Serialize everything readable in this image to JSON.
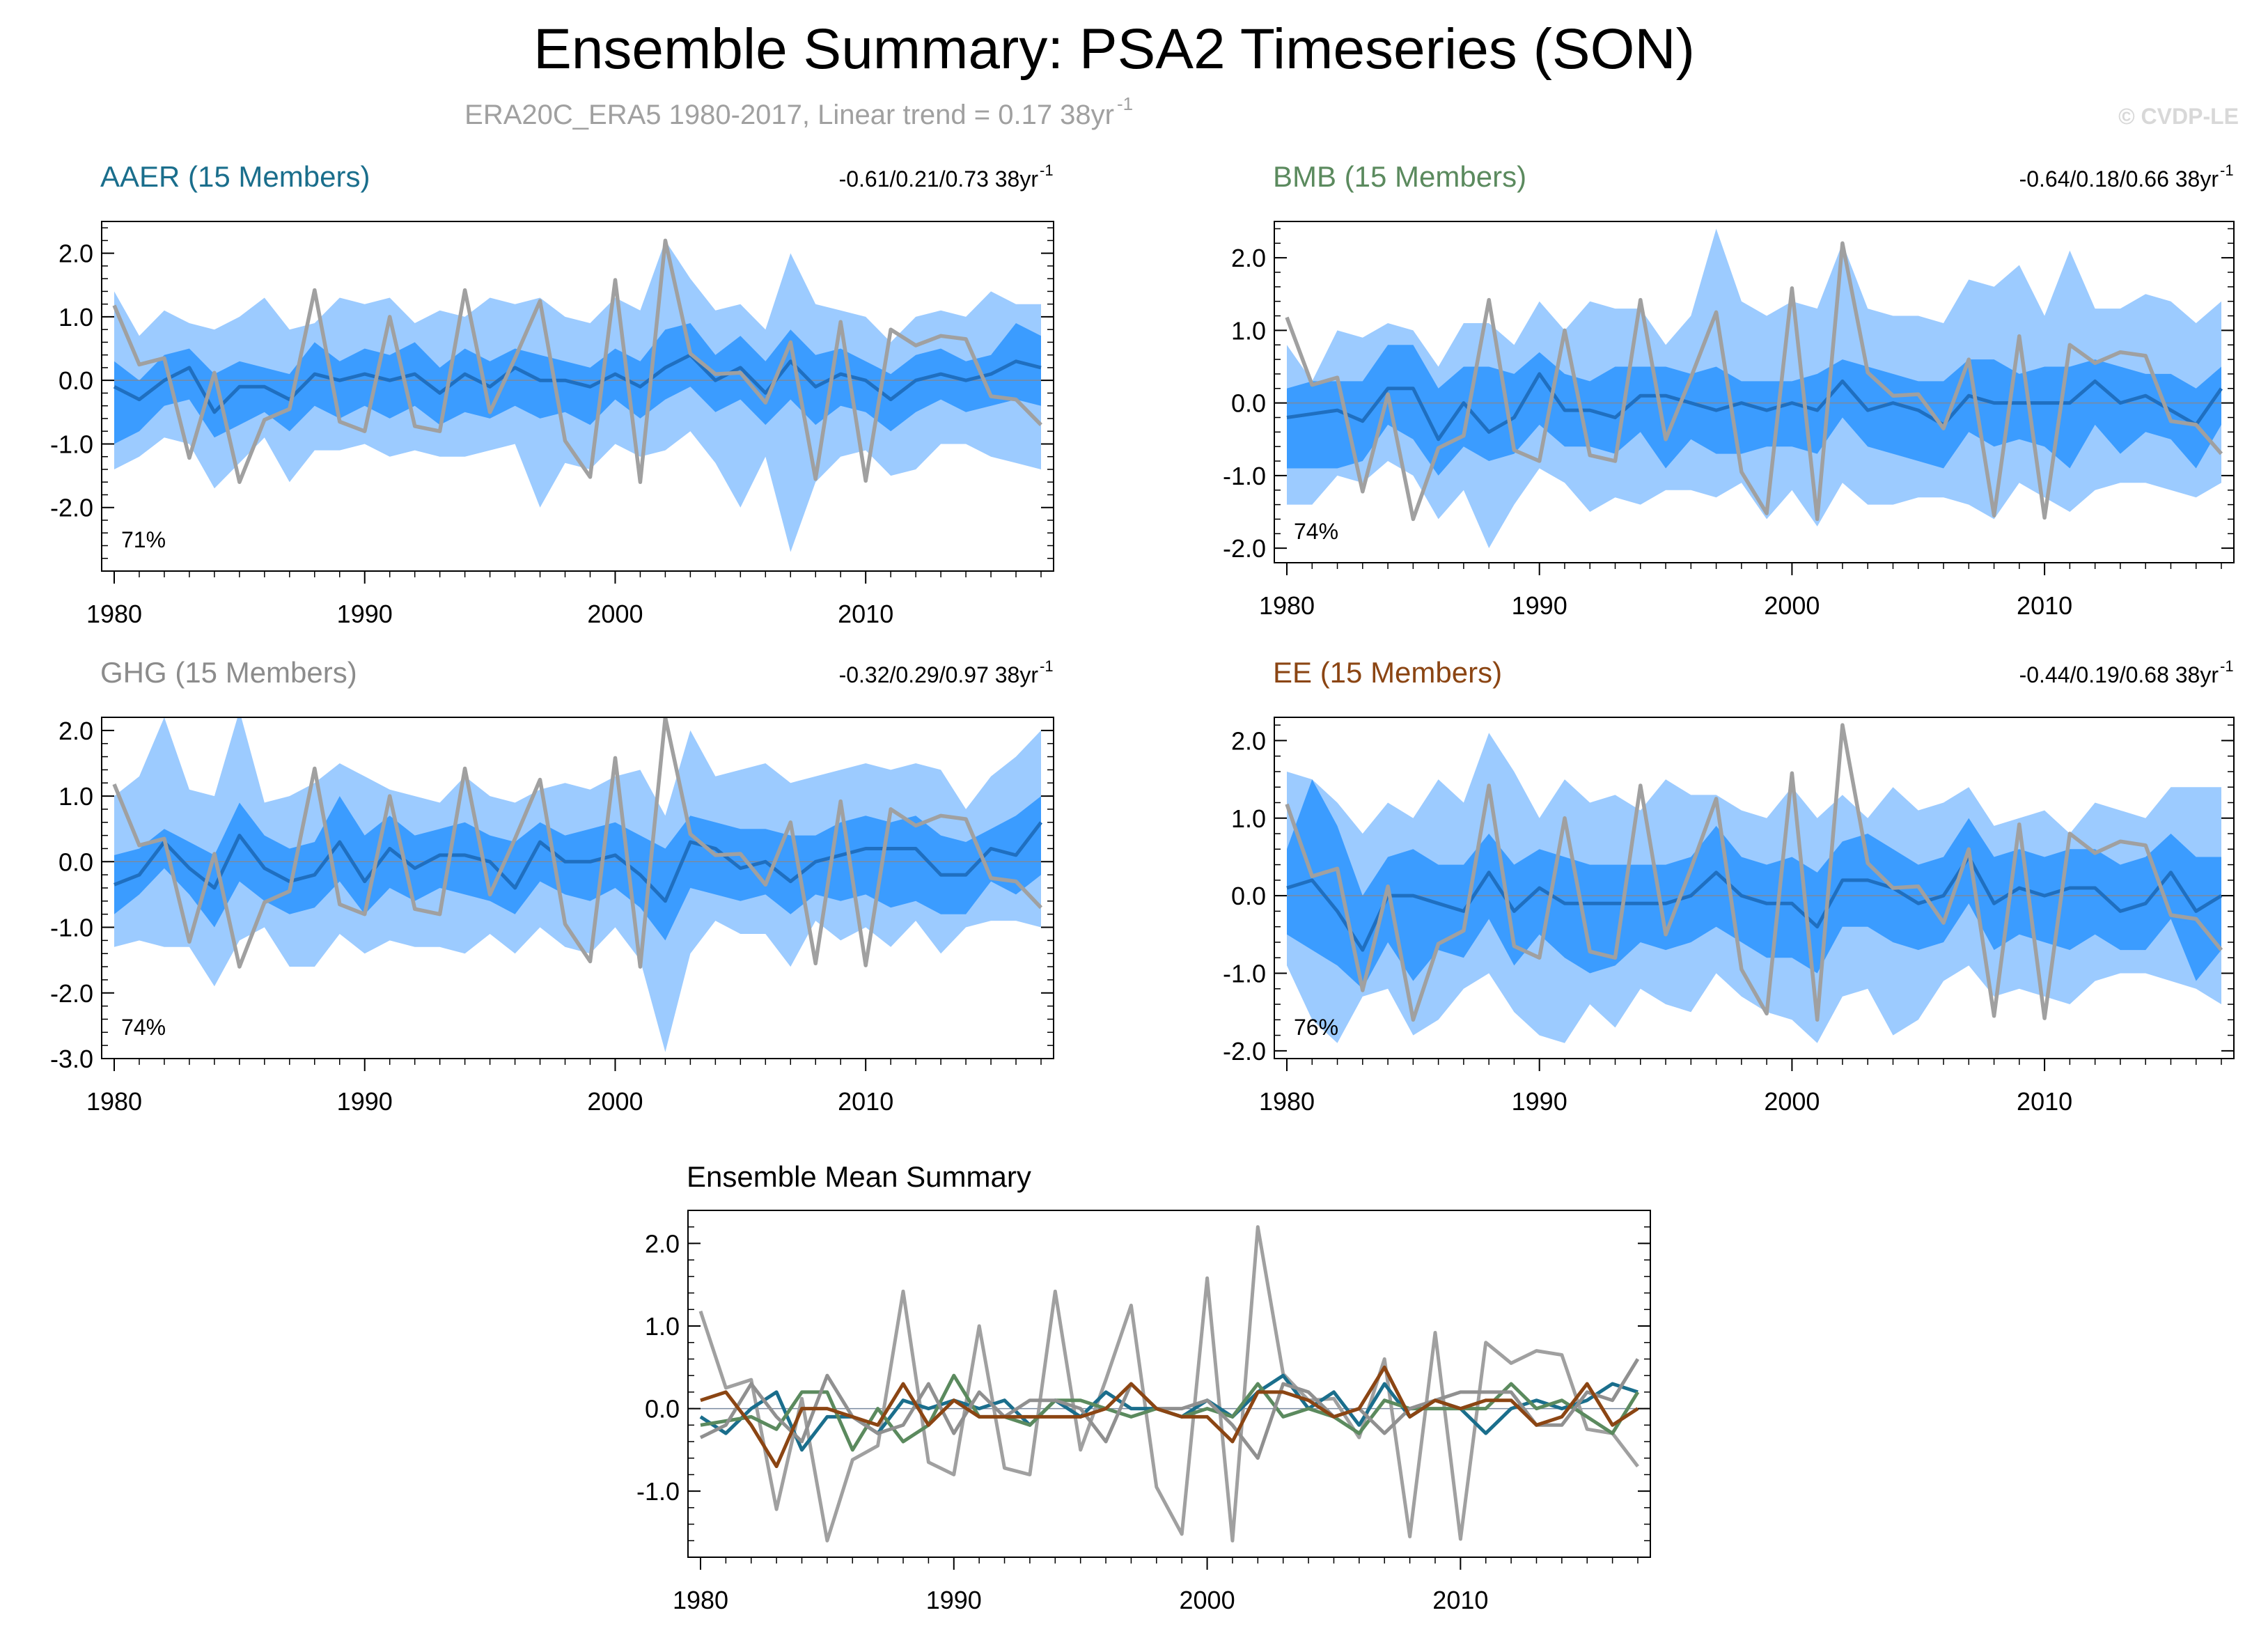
{
  "title": "Ensemble Summary: PSA2 Timeseries (SON)",
  "subtitle_main": "ERA20C_ERA5 1980-2017, Linear trend = 0.17 38yr",
  "subtitle_sup": "-1",
  "credit": "© CVDP-LE",
  "chart_data": [
    {
      "type": "line",
      "title": "AAER (15 Members)",
      "title_color": "#1a6e8c",
      "trend_text": "-0.61/0.21/0.73 38yr",
      "trend_sup": "-1",
      "pct_label": "71%",
      "ylim": [
        -3.0,
        2.5
      ],
      "yticks": [
        2.0,
        1.0,
        0.0,
        -1.0,
        -2.0
      ],
      "ytick_labels": [
        "2.0",
        "1.0",
        "0.0",
        "-1.0",
        "-2.0"
      ],
      "xticks": [
        1980,
        1990,
        2000,
        2010
      ],
      "xtick_labels": [
        "1980",
        "1990",
        "2000",
        "2010"
      ],
      "obs": [
        1.18,
        0.25,
        0.35,
        -1.22,
        0.12,
        -1.6,
        -0.62,
        -0.45,
        1.42,
        -0.65,
        -0.8,
        1.0,
        -0.72,
        -0.8,
        1.42,
        -0.5,
        0.35,
        1.25,
        -0.95,
        -1.52,
        1.58,
        -1.6,
        2.2,
        0.42,
        0.1,
        0.12,
        -0.35,
        0.6,
        -1.55,
        0.92,
        -1.58,
        0.8,
        0.55,
        0.7,
        0.65,
        -0.25,
        -0.3,
        -0.7
      ],
      "mean": [
        -0.1,
        -0.3,
        0.0,
        0.2,
        -0.5,
        -0.1,
        -0.1,
        -0.3,
        0.1,
        0.0,
        0.1,
        0.0,
        0.1,
        -0.2,
        0.1,
        -0.1,
        0.2,
        0.0,
        0.0,
        -0.1,
        0.1,
        -0.1,
        0.2,
        0.4,
        0.0,
        0.2,
        -0.2,
        0.3,
        -0.1,
        0.1,
        0.0,
        -0.3,
        0.0,
        0.1,
        0.0,
        0.1,
        0.3,
        0.2
      ],
      "inner_hi": [
        0.3,
        0.0,
        0.4,
        0.5,
        0.1,
        0.3,
        0.2,
        0.1,
        0.6,
        0.3,
        0.5,
        0.4,
        0.6,
        0.2,
        0.5,
        0.3,
        0.5,
        0.4,
        0.3,
        0.2,
        0.5,
        0.3,
        0.8,
        0.9,
        0.4,
        0.7,
        0.3,
        0.8,
        0.4,
        0.5,
        0.3,
        0.1,
        0.4,
        0.5,
        0.3,
        0.4,
        0.9,
        0.7
      ],
      "inner_lo": [
        -1.0,
        -0.8,
        -0.4,
        -0.3,
        -0.9,
        -0.7,
        -0.5,
        -0.8,
        -0.4,
        -0.6,
        -0.4,
        -0.6,
        -0.4,
        -0.7,
        -0.5,
        -0.6,
        -0.4,
        -0.6,
        -0.5,
        -0.7,
        -0.3,
        -0.6,
        -0.3,
        -0.1,
        -0.5,
        -0.3,
        -0.7,
        -0.3,
        -0.7,
        -0.4,
        -0.5,
        -0.8,
        -0.5,
        -0.3,
        -0.5,
        -0.4,
        -0.3,
        -0.4
      ],
      "outer_hi": [
        1.4,
        0.7,
        1.1,
        0.9,
        0.8,
        1.0,
        1.3,
        0.8,
        0.9,
        1.3,
        1.2,
        1.3,
        0.9,
        1.1,
        1.0,
        1.3,
        1.2,
        1.3,
        1.0,
        0.9,
        1.3,
        1.1,
        2.2,
        1.6,
        1.1,
        1.2,
        0.8,
        2.0,
        1.2,
        1.1,
        1.0,
        0.6,
        1.0,
        1.1,
        1.0,
        1.4,
        1.2,
        1.2
      ],
      "outer_lo": [
        -1.4,
        -1.2,
        -0.9,
        -1.0,
        -1.7,
        -1.3,
        -0.9,
        -1.6,
        -1.1,
        -1.1,
        -1.0,
        -1.2,
        -1.1,
        -1.2,
        -1.2,
        -1.1,
        -1.0,
        -2.0,
        -1.3,
        -1.4,
        -1.0,
        -1.2,
        -1.1,
        -0.8,
        -1.3,
        -2.0,
        -1.2,
        -2.7,
        -1.6,
        -1.2,
        -1.1,
        -1.5,
        -1.4,
        -1.0,
        -1.0,
        -1.2,
        -1.3,
        -1.4
      ]
    },
    {
      "type": "line",
      "title": "BMB (15 Members)",
      "title_color": "#5b8a5e",
      "trend_text": "-0.64/0.18/0.66 38yr",
      "trend_sup": "-1",
      "pct_label": "74%",
      "ylim": [
        -2.2,
        2.5
      ],
      "yticks": [
        2.0,
        1.0,
        0.0,
        -1.0,
        -2.0
      ],
      "ytick_labels": [
        "2.0",
        "1.0",
        "0.0",
        "-1.0",
        "-2.0"
      ],
      "xticks": [
        1980,
        1990,
        2000,
        2010
      ],
      "xtick_labels": [
        "1980",
        "1990",
        "2000",
        "2010"
      ],
      "obs": [
        1.18,
        0.25,
        0.35,
        -1.22,
        0.12,
        -1.6,
        -0.62,
        -0.45,
        1.42,
        -0.65,
        -0.8,
        1.0,
        -0.72,
        -0.8,
        1.42,
        -0.5,
        0.35,
        1.25,
        -0.95,
        -1.52,
        1.58,
        -1.6,
        2.2,
        0.42,
        0.1,
        0.12,
        -0.35,
        0.6,
        -1.55,
        0.92,
        -1.58,
        0.8,
        0.55,
        0.7,
        0.65,
        -0.25,
        -0.3,
        -0.7
      ],
      "mean": [
        -0.2,
        -0.15,
        -0.1,
        -0.25,
        0.2,
        0.2,
        -0.5,
        0.0,
        -0.4,
        -0.2,
        0.4,
        -0.1,
        -0.1,
        -0.2,
        0.1,
        0.1,
        0.0,
        -0.1,
        0.0,
        -0.1,
        0.0,
        -0.1,
        0.3,
        -0.1,
        0.0,
        -0.1,
        -0.3,
        0.1,
        0.0,
        0.0,
        0.0,
        0.0,
        0.3,
        0.0,
        0.1,
        -0.1,
        -0.3,
        0.2
      ],
      "inner_hi": [
        0.2,
        0.3,
        0.3,
        0.3,
        0.8,
        0.8,
        0.2,
        0.5,
        0.5,
        0.4,
        0.7,
        0.4,
        0.3,
        0.5,
        0.5,
        0.5,
        0.4,
        0.5,
        0.3,
        0.3,
        0.3,
        0.4,
        0.6,
        0.5,
        0.4,
        0.3,
        0.3,
        0.6,
        0.6,
        0.4,
        0.5,
        0.5,
        0.6,
        0.5,
        0.4,
        0.4,
        0.2,
        0.5
      ],
      "inner_lo": [
        -0.9,
        -0.9,
        -0.9,
        -0.8,
        -0.3,
        -0.5,
        -1.0,
        -0.6,
        -0.8,
        -0.7,
        -0.3,
        -0.6,
        -0.6,
        -0.7,
        -0.4,
        -0.9,
        -0.5,
        -0.7,
        -0.7,
        -0.6,
        -0.6,
        -0.7,
        -0.2,
        -0.6,
        -0.7,
        -0.8,
        -0.9,
        -0.4,
        -0.6,
        -0.5,
        -0.6,
        -0.9,
        -0.3,
        -0.7,
        -0.4,
        -0.5,
        -0.9,
        -0.3
      ],
      "outer_hi": [
        0.8,
        0.3,
        1.0,
        0.9,
        1.1,
        1.0,
        0.5,
        1.1,
        1.1,
        0.8,
        1.4,
        1.0,
        1.4,
        1.3,
        1.3,
        0.8,
        1.2,
        2.4,
        1.4,
        1.2,
        1.4,
        1.3,
        2.2,
        1.3,
        1.2,
        1.2,
        1.1,
        1.7,
        1.6,
        1.9,
        1.2,
        2.1,
        1.3,
        1.3,
        1.5,
        1.4,
        1.1,
        1.4
      ],
      "outer_lo": [
        -1.4,
        -1.4,
        -1.0,
        -1.1,
        -0.8,
        -1.0,
        -1.6,
        -1.2,
        -2.0,
        -1.4,
        -0.9,
        -1.1,
        -1.5,
        -1.3,
        -1.4,
        -1.2,
        -1.2,
        -1.3,
        -1.1,
        -1.6,
        -1.2,
        -1.7,
        -1.1,
        -1.4,
        -1.4,
        -1.3,
        -1.3,
        -1.4,
        -1.6,
        -1.1,
        -1.3,
        -1.5,
        -1.2,
        -1.1,
        -1.1,
        -1.2,
        -1.3,
        -1.1
      ]
    },
    {
      "type": "line",
      "title": "GHG (15 Members)",
      "title_color": "#8c8c8c",
      "trend_text": "-0.32/0.29/0.97 38yr",
      "trend_sup": "-1",
      "pct_label": "74%",
      "ylim": [
        -3.0,
        2.2
      ],
      "yticks": [
        2.0,
        1.0,
        0.0,
        -1.0,
        -2.0,
        -3.0
      ],
      "ytick_labels": [
        "2.0",
        "1.0",
        "0.0",
        "-1.0",
        "-2.0",
        "-3.0"
      ],
      "xticks": [
        1980,
        1990,
        2000,
        2010
      ],
      "xtick_labels": [
        "1980",
        "1990",
        "2000",
        "2010"
      ],
      "obs": [
        1.18,
        0.25,
        0.35,
        -1.22,
        0.12,
        -1.6,
        -0.62,
        -0.45,
        1.42,
        -0.65,
        -0.8,
        1.0,
        -0.72,
        -0.8,
        1.42,
        -0.5,
        0.35,
        1.25,
        -0.95,
        -1.52,
        1.58,
        -1.6,
        2.2,
        0.42,
        0.1,
        0.12,
        -0.35,
        0.6,
        -1.55,
        0.92,
        -1.58,
        0.8,
        0.55,
        0.7,
        0.65,
        -0.25,
        -0.3,
        -0.7
      ],
      "mean": [
        -0.35,
        -0.2,
        0.3,
        -0.1,
        -0.4,
        0.4,
        -0.1,
        -0.3,
        -0.2,
        0.3,
        -0.3,
        0.2,
        -0.1,
        0.1,
        0.1,
        0.0,
        -0.4,
        0.3,
        0.0,
        0.0,
        0.1,
        -0.2,
        -0.6,
        0.3,
        0.2,
        -0.1,
        0.0,
        -0.3,
        0.0,
        0.1,
        0.2,
        0.2,
        0.2,
        -0.2,
        -0.2,
        0.2,
        0.1,
        0.6
      ],
      "inner_hi": [
        0.1,
        0.2,
        0.5,
        0.3,
        0.1,
        0.9,
        0.4,
        0.2,
        0.3,
        1.0,
        0.4,
        0.7,
        0.4,
        0.5,
        0.6,
        0.4,
        0.3,
        0.6,
        0.4,
        0.5,
        0.6,
        0.4,
        0.2,
        0.7,
        0.6,
        0.5,
        0.5,
        0.4,
        0.4,
        0.6,
        0.7,
        0.6,
        0.7,
        0.4,
        0.3,
        0.5,
        0.7,
        1.0
      ],
      "inner_lo": [
        -0.8,
        -0.5,
        -0.1,
        -0.5,
        -1.0,
        -0.3,
        -0.6,
        -0.8,
        -0.7,
        -0.3,
        -0.8,
        -0.4,
        -0.6,
        -0.4,
        -0.5,
        -0.6,
        -0.8,
        -0.3,
        -0.5,
        -0.6,
        -0.4,
        -0.7,
        -1.2,
        -0.4,
        -0.5,
        -0.6,
        -0.5,
        -0.8,
        -0.5,
        -0.6,
        -0.5,
        -0.7,
        -0.6,
        -0.8,
        -0.8,
        -0.3,
        -0.5,
        -0.2
      ],
      "outer_hi": [
        1.0,
        1.3,
        2.2,
        1.1,
        1.0,
        2.3,
        0.9,
        1.0,
        1.2,
        1.5,
        1.3,
        1.1,
        1.0,
        0.9,
        1.3,
        1.0,
        0.9,
        1.1,
        1.2,
        1.1,
        1.3,
        1.4,
        0.7,
        2.0,
        1.3,
        1.4,
        1.5,
        1.2,
        1.3,
        1.4,
        1.5,
        1.4,
        1.5,
        1.4,
        0.8,
        1.3,
        1.6,
        2.0
      ],
      "outer_lo": [
        -1.3,
        -1.2,
        -1.3,
        -1.3,
        -1.9,
        -1.2,
        -1.0,
        -1.6,
        -1.6,
        -1.1,
        -1.4,
        -1.2,
        -1.3,
        -1.3,
        -1.4,
        -1.1,
        -1.4,
        -1.0,
        -1.3,
        -1.4,
        -1.0,
        -1.5,
        -2.9,
        -1.4,
        -0.9,
        -1.1,
        -1.1,
        -1.6,
        -0.9,
        -1.2,
        -1.0,
        -1.3,
        -0.9,
        -1.4,
        -1.0,
        -0.9,
        -0.9,
        -1.0
      ]
    },
    {
      "type": "line",
      "title": "EE (15 Members)",
      "title_color": "#8b4513",
      "trend_text": "-0.44/0.19/0.68 38yr",
      "trend_sup": "-1",
      "pct_label": "76%",
      "ylim": [
        -2.1,
        2.3
      ],
      "yticks": [
        2.0,
        1.0,
        0.0,
        -1.0,
        -2.0
      ],
      "ytick_labels": [
        "2.0",
        "1.0",
        "0.0",
        "-1.0",
        "-2.0"
      ],
      "xticks": [
        1980,
        1990,
        2000,
        2010
      ],
      "xtick_labels": [
        "1980",
        "1990",
        "2000",
        "2010"
      ],
      "obs": [
        1.18,
        0.25,
        0.35,
        -1.22,
        0.12,
        -1.6,
        -0.62,
        -0.45,
        1.42,
        -0.65,
        -0.8,
        1.0,
        -0.72,
        -0.8,
        1.42,
        -0.5,
        0.35,
        1.25,
        -0.95,
        -1.52,
        1.58,
        -1.6,
        2.2,
        0.42,
        0.1,
        0.12,
        -0.35,
        0.6,
        -1.55,
        0.92,
        -1.58,
        0.8,
        0.55,
        0.7,
        0.65,
        -0.25,
        -0.3,
        -0.7
      ],
      "mean": [
        0.1,
        0.2,
        -0.2,
        -0.7,
        0.0,
        0.0,
        -0.1,
        -0.2,
        0.3,
        -0.2,
        0.1,
        -0.1,
        -0.1,
        -0.1,
        -0.1,
        -0.1,
        0.0,
        0.3,
        0.0,
        -0.1,
        -0.1,
        -0.4,
        0.2,
        0.2,
        0.1,
        -0.1,
        0.0,
        0.5,
        -0.1,
        0.1,
        0.0,
        0.1,
        0.1,
        -0.2,
        -0.1,
        0.3,
        -0.2,
        0.0
      ],
      "inner_hi": [
        0.6,
        1.5,
        0.9,
        0.0,
        0.5,
        0.6,
        0.4,
        0.4,
        0.8,
        0.4,
        0.6,
        0.5,
        0.4,
        0.4,
        0.4,
        0.4,
        0.5,
        0.9,
        0.5,
        0.4,
        0.5,
        0.3,
        0.7,
        0.8,
        0.6,
        0.4,
        0.5,
        1.0,
        0.5,
        0.6,
        0.5,
        0.6,
        0.6,
        0.4,
        0.5,
        0.8,
        0.5,
        0.5
      ],
      "inner_lo": [
        -0.5,
        -0.7,
        -0.9,
        -1.2,
        -0.6,
        -1.1,
        -0.7,
        -0.8,
        -0.3,
        -0.9,
        -0.5,
        -0.8,
        -1.0,
        -0.9,
        -0.6,
        -0.7,
        -0.6,
        -0.4,
        -0.6,
        -0.8,
        -0.8,
        -1.0,
        -0.4,
        -0.4,
        -0.6,
        -0.7,
        -0.6,
        -0.1,
        -0.7,
        -0.5,
        -0.6,
        -0.7,
        -0.5,
        -0.7,
        -0.7,
        -0.3,
        -1.1,
        -0.7
      ],
      "outer_hi": [
        1.6,
        1.5,
        1.2,
        0.8,
        1.2,
        1.0,
        1.5,
        1.2,
        2.1,
        1.6,
        1.0,
        1.5,
        1.2,
        1.3,
        1.1,
        1.5,
        1.3,
        1.3,
        1.1,
        1.0,
        1.4,
        1.0,
        1.3,
        1.0,
        1.4,
        1.1,
        1.2,
        1.4,
        0.9,
        1.0,
        1.1,
        0.8,
        1.2,
        1.1,
        1.0,
        1.4,
        1.4,
        1.4
      ],
      "outer_lo": [
        -0.9,
        -1.6,
        -1.9,
        -1.3,
        -1.2,
        -1.8,
        -1.6,
        -1.2,
        -1.0,
        -1.5,
        -1.8,
        -1.9,
        -1.4,
        -1.7,
        -1.2,
        -1.4,
        -1.5,
        -1.0,
        -1.3,
        -1.5,
        -1.6,
        -1.9,
        -1.3,
        -1.2,
        -1.8,
        -1.6,
        -1.1,
        -0.9,
        -1.3,
        -1.2,
        -1.3,
        -1.4,
        -1.1,
        -1.0,
        -1.0,
        -1.1,
        -1.2,
        -1.4
      ]
    },
    {
      "type": "line",
      "title": "Ensemble Mean Summary",
      "title_color": "#000000",
      "ylim": [
        -1.8,
        2.4
      ],
      "yticks": [
        2.0,
        1.0,
        0.0,
        -1.0
      ],
      "ytick_labels": [
        "2.0",
        "1.0",
        "0.0",
        "-1.0"
      ],
      "xticks": [
        1980,
        1990,
        2000,
        2010
      ],
      "xtick_labels": [
        "1980",
        "1990",
        "2000",
        "2010"
      ],
      "series_colors": [
        "#a0a0a0",
        "#1a6e8c",
        "#5b8a5e",
        "#909090",
        "#8b4513"
      ],
      "series_refs": [
        "obs",
        "mean:0",
        "mean:1",
        "mean:2",
        "mean:3"
      ]
    }
  ],
  "legend": []
}
